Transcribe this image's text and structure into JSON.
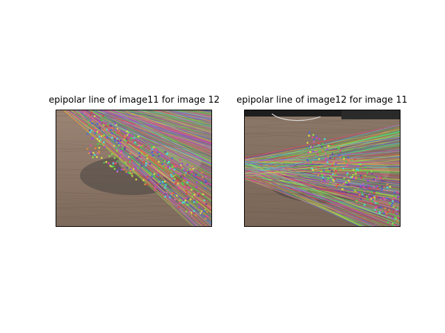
{
  "figure": {
    "left_title": "epipolar line of image11 for image 12",
    "right_title": "epipolar line of image12 for image 11"
  },
  "colors": {
    "figure_bg": "#ffffff",
    "wood_floor": "#8c7868",
    "dark_object": "#2a2a2a",
    "frame": "#000000"
  },
  "left_panel": {
    "content": "photo of wooden floor with shadowed object, overlaid with many multicolored epipolar lines converging toward upper-left and scattered colored keypoint dots"
  },
  "right_panel": {
    "content": "photo of wooden floor with dark appliance and cable at top, overlaid with many multicolored epipolar lines converging toward left and scattered colored keypoint dots"
  }
}
